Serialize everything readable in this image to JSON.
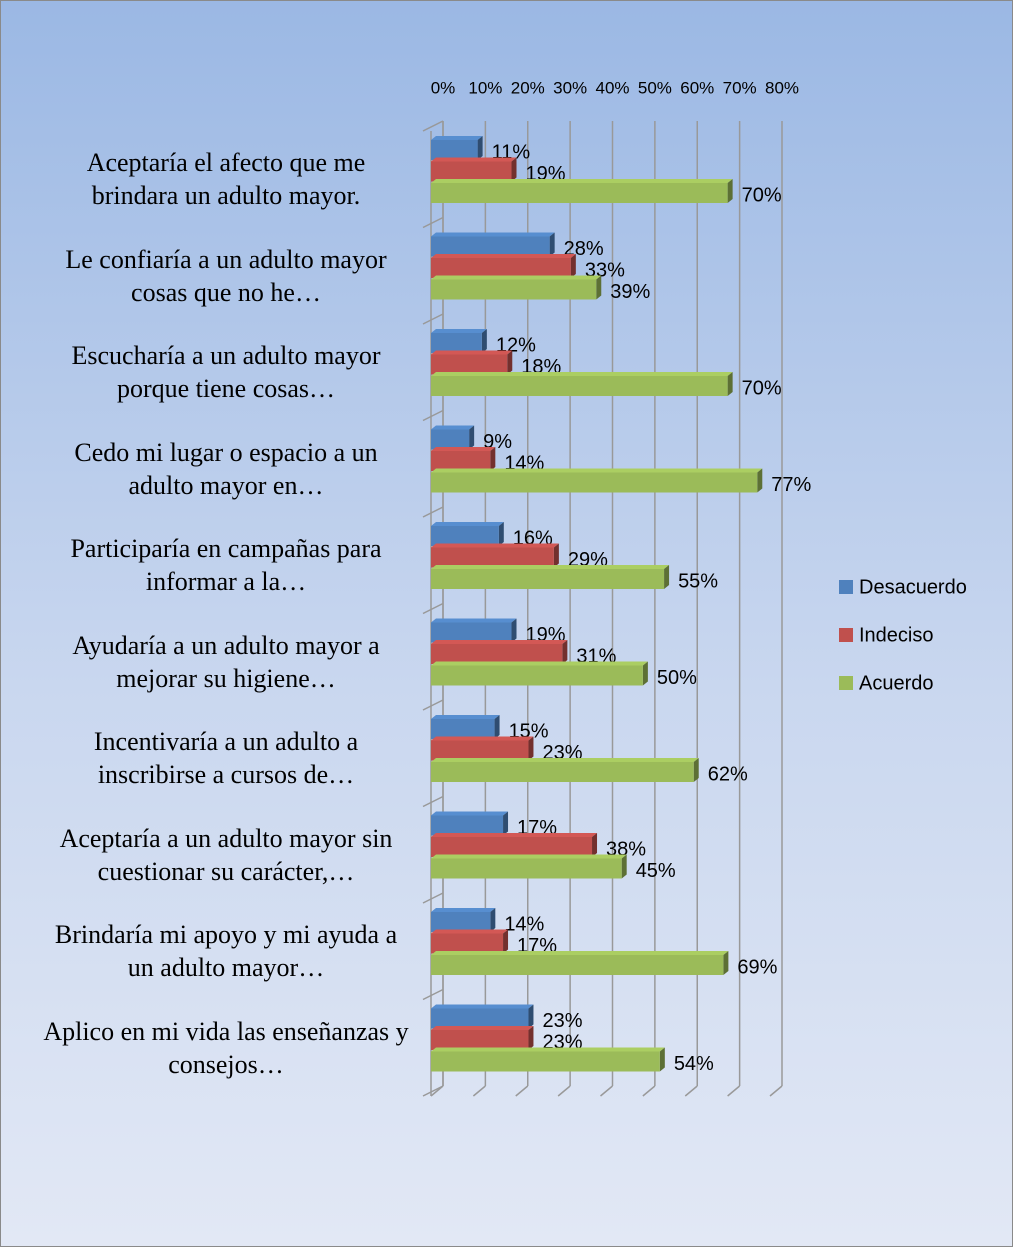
{
  "chart_data": {
    "type": "bar3d",
    "categories": [
      "Aceptaría el afecto que me brindara un adulto mayor.",
      "Le confiaría a un adulto mayor cosas que no he…",
      "Escucharía a un adulto mayor porque tiene cosas…",
      "Cedo mi lugar o espacio a un adulto mayor en…",
      "Participaría en campañas para informar a la…",
      "Ayudaría a un adulto mayor a mejorar su higiene…",
      "Incentivaría a un adulto a inscribirse a cursos de…",
      "Aceptaría a un adulto mayor sin cuestionar su carácter,…",
      "Brindaría mi apoyo y mi ayuda a un adulto mayor…",
      "Aplico en mi vida las enseñanzas y consejos…"
    ],
    "series": [
      {
        "name": "Desacuerdo",
        "color": "#4f81bd",
        "values": [
          11,
          28,
          12,
          9,
          16,
          19,
          15,
          17,
          14,
          23
        ],
        "value_labels": [
          "11%",
          "28%",
          "12%",
          "9%",
          "16%",
          "19%",
          "15%",
          "17%",
          "14%",
          "23%"
        ]
      },
      {
        "name": "Indeciso",
        "color": "#c0504d",
        "values": [
          19,
          33,
          18,
          14,
          29,
          31,
          23,
          38,
          17,
          23
        ],
        "value_labels": [
          "19%",
          "33%",
          "18%",
          "14%",
          "29%",
          "31%",
          "23%",
          "38%",
          "17%",
          "23%"
        ]
      },
      {
        "name": "Acuerdo",
        "color": "#9bbb59",
        "values": [
          70,
          39,
          70,
          77,
          55,
          50,
          62,
          45,
          69,
          54
        ],
        "value_labels": [
          "70%",
          "39%",
          "70%",
          "77%",
          "55%",
          "50%",
          "62%",
          "45%",
          "69%",
          "54%"
        ]
      }
    ],
    "xlim": [
      0,
      80
    ],
    "xticks": [
      {
        "value": 0,
        "label": "0%"
      },
      {
        "value": 10,
        "label": "10%"
      },
      {
        "value": 20,
        "label": "20%"
      },
      {
        "value": 30,
        "label": "30%"
      },
      {
        "value": 40,
        "label": "40%"
      },
      {
        "value": 50,
        "label": "50%"
      },
      {
        "value": 60,
        "label": "60%"
      },
      {
        "value": 70,
        "label": "70%"
      },
      {
        "value": 80,
        "label": "80%"
      }
    ],
    "grid": true,
    "legend": "right"
  }
}
